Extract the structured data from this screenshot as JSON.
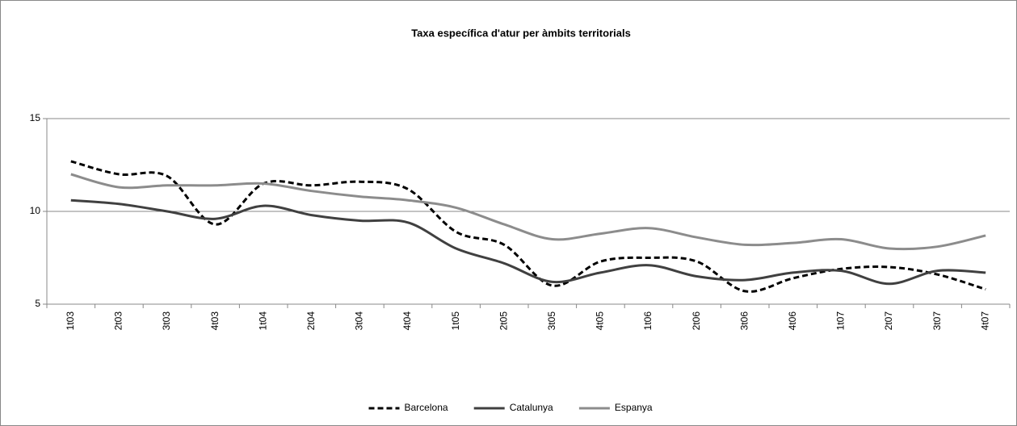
{
  "chart_data": {
    "type": "line",
    "title": "Taxa específica d'atur per àmbits territorials",
    "categories": [
      "1t03",
      "2t03",
      "3t03",
      "4t03",
      "1t04",
      "2t04",
      "3t04",
      "4t04",
      "1t05",
      "2t05",
      "3t05",
      "4t05",
      "1t06",
      "2t06",
      "3t06",
      "4t06",
      "1t07",
      "2t07",
      "3t07",
      "4t07"
    ],
    "series": [
      {
        "name": "Barcelona",
        "color": "#000000",
        "dashed": true,
        "values": [
          12.7,
          12.0,
          11.9,
          9.3,
          11.5,
          11.4,
          11.6,
          11.2,
          8.9,
          8.2,
          6.0,
          7.3,
          7.5,
          7.3,
          5.7,
          6.4,
          6.9,
          7.0,
          6.6,
          5.8
        ]
      },
      {
        "name": "Catalunya",
        "color": "#404040",
        "values": [
          10.6,
          10.4,
          10.0,
          9.6,
          10.3,
          9.8,
          9.5,
          9.4,
          8.0,
          7.2,
          6.2,
          6.7,
          7.1,
          6.5,
          6.3,
          6.7,
          6.8,
          6.1,
          6.8,
          6.7
        ]
      },
      {
        "name": "Espanya",
        "color": "#8c8c8c",
        "values": [
          12.0,
          11.3,
          11.4,
          11.4,
          11.5,
          11.1,
          10.8,
          10.6,
          10.2,
          9.3,
          8.5,
          8.8,
          9.1,
          8.6,
          8.2,
          8.3,
          8.5,
          8.0,
          8.1,
          8.7
        ]
      }
    ],
    "ylim": [
      5,
      15
    ],
    "yticks": [
      5,
      10,
      15
    ],
    "grid": true,
    "legend": "bottom"
  }
}
